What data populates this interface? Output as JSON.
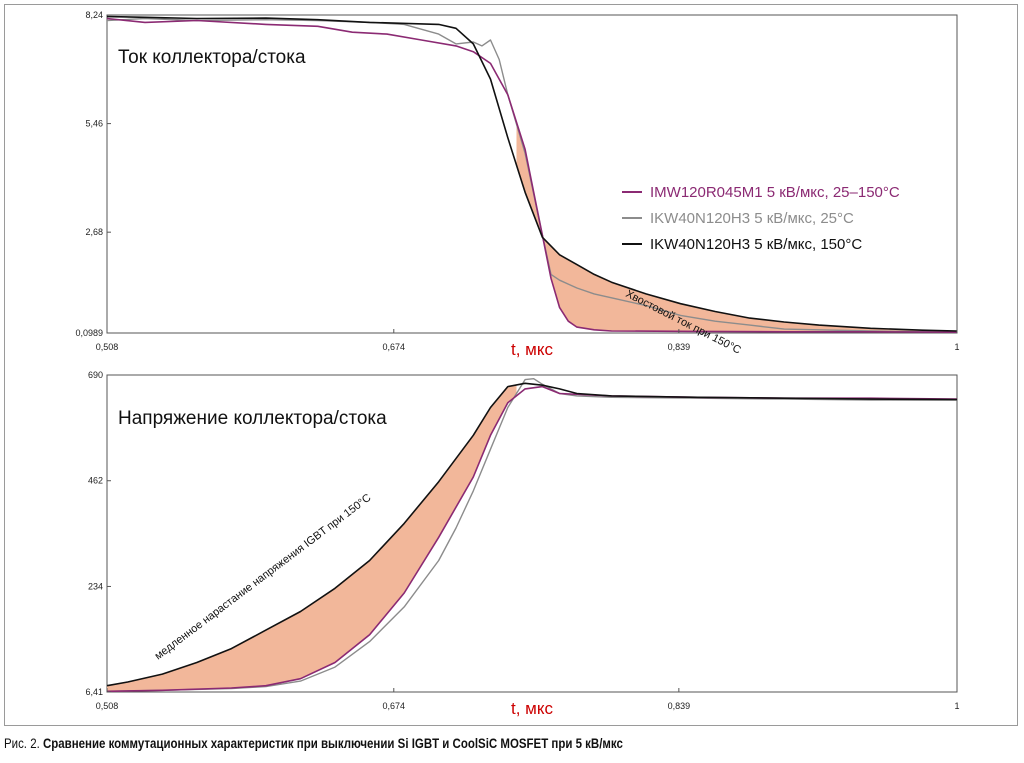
{
  "caption": {
    "prefix": "Рис. 2.",
    "title": "Сравнение коммутационных характеристик при выключении Si IGBT и CoolSiC MOSFET при 5 кВ/мкс"
  },
  "colors": {
    "mosfet": "#8b2a73",
    "igbt25": "#8c8c8c",
    "igbt150": "#111111",
    "fill": "#f2b79a",
    "axis_title": "#cc0000"
  },
  "chart_data": [
    {
      "type": "line",
      "title": "Ток коллектора/стока",
      "xlabel": "t, мкс",
      "ylabel": "",
      "xlim": [
        0.508,
        1.0
      ],
      "ylim": [
        0.0989,
        8.24
      ],
      "xticks": [
        "0,508",
        "0,674",
        "0,839",
        "1"
      ],
      "xtick_values": [
        0.508,
        0.674,
        0.839,
        1.0
      ],
      "yticks": [
        "8,24",
        "5,46",
        "2,68",
        "0,0989"
      ],
      "ytick_values": [
        8.24,
        5.46,
        2.68,
        0.0989
      ],
      "grid": false,
      "legend_position": "right",
      "annotation": "Хвостовой ток при 150°C",
      "shaded_region": "between IKW40N120H3 150°C and IMW120R045M1",
      "series": [
        {
          "name": "IMW120R045M1 5 кВ/мкс, 25–150°С",
          "color_key": "mosfet",
          "x": [
            0.508,
            0.53,
            0.56,
            0.6,
            0.63,
            0.65,
            0.67,
            0.69,
            0.71,
            0.72,
            0.73,
            0.74,
            0.75,
            0.755,
            0.76,
            0.765,
            0.77,
            0.775,
            0.78,
            0.79,
            0.8,
            0.85,
            0.9,
            0.95,
            1.0
          ],
          "y": [
            8.15,
            8.05,
            8.1,
            8.0,
            7.95,
            7.8,
            7.75,
            7.6,
            7.45,
            7.3,
            7.0,
            6.2,
            4.8,
            3.7,
            2.6,
            1.5,
            0.75,
            0.4,
            0.25,
            0.18,
            0.15,
            0.14,
            0.13,
            0.13,
            0.12
          ]
        },
        {
          "name": "IKW40N120H3 5 кВ/мкс, 25°С",
          "color_key": "igbt25",
          "x": [
            0.508,
            0.53,
            0.56,
            0.6,
            0.63,
            0.66,
            0.68,
            0.7,
            0.71,
            0.72,
            0.725,
            0.73,
            0.735,
            0.74,
            0.75,
            0.76,
            0.765,
            0.77,
            0.775,
            0.78,
            0.79,
            0.8,
            0.82,
            0.84,
            0.86,
            0.88,
            0.9,
            0.95,
            1.0
          ],
          "y": [
            8.1,
            8.15,
            8.1,
            8.12,
            8.1,
            8.05,
            8.0,
            7.75,
            7.5,
            7.55,
            7.45,
            7.6,
            7.1,
            6.2,
            4.7,
            2.6,
            1.6,
            1.45,
            1.35,
            1.25,
            1.1,
            1.0,
            0.8,
            0.55,
            0.4,
            0.3,
            0.2,
            0.15,
            0.12
          ]
        },
        {
          "name": "IKW40N120H3 5 кВ/мкс, 150°С",
          "color_key": "igbt150",
          "x": [
            0.508,
            0.53,
            0.56,
            0.6,
            0.63,
            0.66,
            0.7,
            0.71,
            0.72,
            0.73,
            0.74,
            0.75,
            0.76,
            0.77,
            0.78,
            0.79,
            0.8,
            0.82,
            0.84,
            0.86,
            0.88,
            0.9,
            0.92,
            0.95,
            0.98,
            1.0
          ],
          "y": [
            8.2,
            8.18,
            8.15,
            8.16,
            8.12,
            8.05,
            8.0,
            7.9,
            7.5,
            6.6,
            5.1,
            3.7,
            2.55,
            2.1,
            1.85,
            1.6,
            1.4,
            1.1,
            0.85,
            0.65,
            0.48,
            0.38,
            0.3,
            0.22,
            0.17,
            0.15
          ]
        }
      ]
    },
    {
      "type": "line",
      "title": "Напряжение коллектора/стока",
      "xlabel": "t, мкс",
      "ylabel": "",
      "xlim": [
        0.508,
        1.0
      ],
      "ylim": [
        6.41,
        690
      ],
      "xticks": [
        "0,508",
        "0,674",
        "0,839",
        "1"
      ],
      "xtick_values": [
        0.508,
        0.674,
        0.839,
        1.0
      ],
      "yticks": [
        "690",
        "462",
        "234",
        "6,41"
      ],
      "ytick_values": [
        690,
        462,
        234,
        6.41
      ],
      "grid": false,
      "annotation": "медленное нарастание напряжения IGBT при 150°С",
      "shaded_region": "between IKW40N120H3 150°C and IMW120R045M1",
      "series": [
        {
          "name": "IMW120R045M1",
          "color_key": "mosfet",
          "x": [
            0.508,
            0.54,
            0.58,
            0.6,
            0.62,
            0.64,
            0.66,
            0.68,
            0.7,
            0.72,
            0.73,
            0.74,
            0.75,
            0.76,
            0.77,
            0.8,
            0.85,
            0.9,
            0.95,
            1.0
          ],
          "y": [
            8,
            10,
            15,
            20,
            35,
            70,
            130,
            220,
            340,
            470,
            560,
            630,
            660,
            665,
            650,
            645,
            642,
            640,
            640,
            638
          ]
        },
        {
          "name": "IKW40N120H3 25°С",
          "color_key": "igbt25",
          "x": [
            0.508,
            0.54,
            0.58,
            0.6,
            0.62,
            0.64,
            0.66,
            0.68,
            0.7,
            0.71,
            0.72,
            0.73,
            0.74,
            0.75,
            0.755,
            0.76,
            0.77,
            0.78,
            0.8,
            0.85,
            0.9,
            0.95,
            1.0
          ],
          "y": [
            8,
            10,
            14,
            18,
            30,
            60,
            115,
            190,
            290,
            360,
            440,
            530,
            620,
            680,
            682,
            670,
            650,
            645,
            642,
            640,
            638,
            636,
            636
          ]
        },
        {
          "name": "IKW40N120H3 150°С",
          "color_key": "igbt150",
          "x": [
            0.508,
            0.52,
            0.54,
            0.56,
            0.58,
            0.6,
            0.62,
            0.64,
            0.66,
            0.68,
            0.7,
            0.72,
            0.73,
            0.74,
            0.75,
            0.76,
            0.77,
            0.78,
            0.8,
            0.85,
            0.9,
            0.95,
            1.0
          ],
          "y": [
            20,
            28,
            45,
            70,
            100,
            140,
            180,
            230,
            290,
            370,
            460,
            560,
            620,
            665,
            672,
            668,
            660,
            650,
            645,
            642,
            640,
            638,
            637
          ]
        }
      ]
    }
  ]
}
